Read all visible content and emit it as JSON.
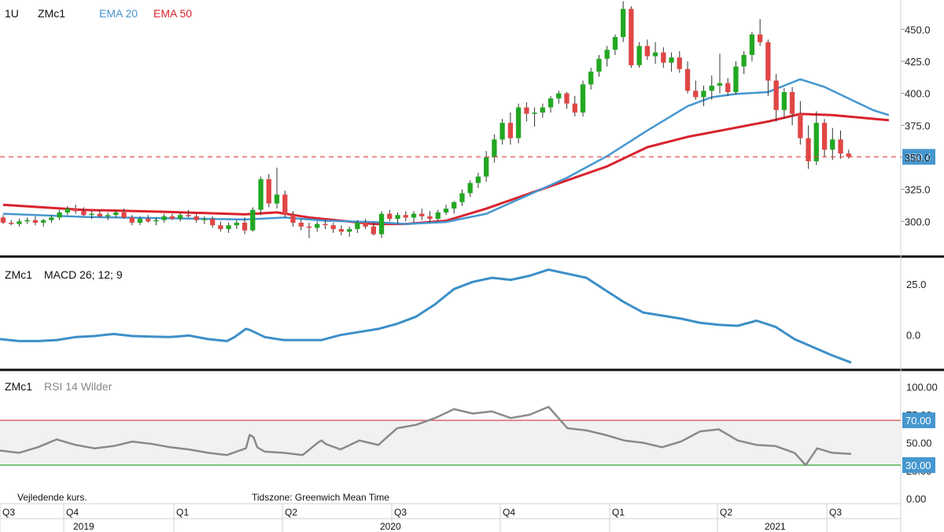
{
  "header": {
    "interval": "1U",
    "symbol": "ZMc1",
    "ema20_label": "EMA 20",
    "ema50_label": "EMA 50"
  },
  "macd_panel": {
    "symbol": "ZMc1",
    "title": "MACD 26; 12; 9"
  },
  "rsi_panel": {
    "symbol": "ZMc1",
    "title": "RSI 14 Wilder"
  },
  "footer": {
    "note": "Vejledende kurs.",
    "timezone": "Tidszone: Greenwich Mean Time"
  },
  "colors": {
    "up": "#22a822",
    "down": "#e04646",
    "ema20": "#4597cf",
    "ema50": "#d9232e",
    "macd": "#3d8fc7",
    "rsi": "#8a8a8a",
    "rsi_upper": "#d94a4a",
    "rsi_lower": "#2fa62f",
    "badge": "#4597cf"
  },
  "chart_data": [
    {
      "type": "candlestick",
      "title": "",
      "ylim": [
        275,
        468
      ],
      "yticks": [
        "300.0",
        "325.0",
        "350.0",
        "375.0",
        "400.0",
        "425.0",
        "450.0"
      ],
      "last_price_label": "350.4",
      "last_price": 350.4,
      "ohlc": [
        [
          303,
          305,
          298,
          299
        ],
        [
          299,
          301,
          297,
          298
        ],
        [
          298,
          302,
          296,
          300
        ],
        [
          300,
          303,
          298,
          301
        ],
        [
          301,
          304,
          297,
          299
        ],
        [
          299,
          302,
          296,
          301
        ],
        [
          301,
          305,
          299,
          303
        ],
        [
          303,
          309,
          301,
          307
        ],
        [
          307,
          312,
          305,
          310
        ],
        [
          310,
          313,
          306,
          308
        ],
        [
          308,
          311,
          304,
          305
        ],
        [
          305,
          308,
          302,
          306
        ],
        [
          306,
          309,
          303,
          304
        ],
        [
          304,
          307,
          301,
          305
        ],
        [
          305,
          309,
          303,
          307
        ],
        [
          307,
          310,
          302,
          303
        ],
        [
          303,
          305,
          297,
          299
        ],
        [
          299,
          304,
          297,
          302
        ],
        [
          302,
          305,
          299,
          300
        ],
        [
          300,
          303,
          297,
          301
        ],
        [
          301,
          306,
          299,
          304
        ],
        [
          304,
          306,
          301,
          302
        ],
        [
          302,
          307,
          300,
          305
        ],
        [
          305,
          309,
          303,
          304
        ],
        [
          304,
          306,
          299,
          301
        ],
        [
          301,
          304,
          298,
          302
        ],
        [
          302,
          304,
          295,
          297
        ],
        [
          297,
          300,
          292,
          294
        ],
        [
          294,
          299,
          291,
          297
        ],
        [
          297,
          301,
          294,
          299
        ],
        [
          299,
          303,
          290,
          293
        ],
        [
          293,
          311,
          292,
          309
        ],
        [
          309,
          335,
          305,
          333
        ],
        [
          333,
          337,
          311,
          314
        ],
        [
          314,
          342,
          310,
          321
        ],
        [
          321,
          324,
          303,
          305
        ],
        [
          305,
          308,
          296,
          299
        ],
        [
          299,
          302,
          293,
          296
        ],
        [
          296,
          299,
          287,
          295
        ],
        [
          295,
          300,
          292,
          298
        ],
        [
          298,
          301,
          294,
          297
        ],
        [
          297,
          299,
          291,
          294
        ],
        [
          294,
          297,
          289,
          292
        ],
        [
          292,
          296,
          288,
          294
        ],
        [
          294,
          301,
          291,
          299
        ],
        [
          299,
          302,
          294,
          296
        ],
        [
          296,
          299,
          289,
          290
        ],
        [
          290,
          308,
          287,
          306
        ],
        [
          306,
          309,
          300,
          302
        ],
        [
          302,
          307,
          298,
          305
        ],
        [
          305,
          308,
          300,
          303
        ],
        [
          303,
          308,
          299,
          306
        ],
        [
          306,
          310,
          301,
          304
        ],
        [
          304,
          308,
          299,
          302
        ],
        [
          302,
          309,
          300,
          307
        ],
        [
          307,
          313,
          305,
          310
        ],
        [
          310,
          316,
          306,
          315
        ],
        [
          315,
          325,
          312,
          322
        ],
        [
          322,
          332,
          319,
          330
        ],
        [
          330,
          338,
          326,
          335
        ],
        [
          335,
          355,
          331,
          350
        ],
        [
          350,
          368,
          346,
          364
        ],
        [
          364,
          380,
          360,
          377
        ],
        [
          377,
          385,
          360,
          365
        ],
        [
          365,
          392,
          361,
          389
        ],
        [
          389,
          393,
          378,
          384
        ],
        [
          384,
          389,
          374,
          385
        ],
        [
          385,
          392,
          381,
          389
        ],
        [
          389,
          398,
          385,
          396
        ],
        [
          396,
          402,
          392,
          400
        ],
        [
          400,
          401,
          388,
          392
        ],
        [
          392,
          398,
          382,
          385
        ],
        [
          385,
          410,
          382,
          407
        ],
        [
          407,
          420,
          403,
          417
        ],
        [
          417,
          430,
          413,
          427
        ],
        [
          427,
          437,
          421,
          434
        ],
        [
          434,
          446,
          430,
          444
        ],
        [
          444,
          472,
          440,
          466
        ],
        [
          466,
          468,
          420,
          422
        ],
        [
          422,
          440,
          420,
          437
        ],
        [
          437,
          442,
          426,
          429
        ],
        [
          429,
          440,
          423,
          432
        ],
        [
          432,
          436,
          420,
          424
        ],
        [
          424,
          432,
          417,
          428
        ],
        [
          428,
          433,
          416,
          419
        ],
        [
          419,
          425,
          400,
          402
        ],
        [
          402,
          410,
          395,
          397
        ],
        [
          397,
          406,
          390,
          402
        ],
        [
          402,
          414,
          395,
          406
        ],
        [
          406,
          431,
          400,
          408
        ],
        [
          408,
          412,
          398,
          401
        ],
        [
          401,
          425,
          399,
          421
        ],
        [
          421,
          433,
          415,
          430
        ],
        [
          430,
          448,
          425,
          446
        ],
        [
          446,
          458,
          437,
          440
        ],
        [
          440,
          442,
          398,
          410
        ],
        [
          410,
          415,
          378,
          387
        ],
        [
          387,
          404,
          380,
          401
        ],
        [
          401,
          405,
          375,
          384
        ],
        [
          384,
          394,
          360,
          365
        ],
        [
          365,
          375,
          341,
          347
        ],
        [
          347,
          386,
          344,
          377
        ],
        [
          377,
          380,
          350,
          356
        ],
        [
          356,
          373,
          348,
          364
        ],
        [
          364,
          371,
          349,
          353
        ],
        [
          353,
          356,
          349,
          350.4
        ]
      ],
      "ema20": [
        [
          0,
          306
        ],
        [
          10,
          303.5
        ],
        [
          20,
          302.5
        ],
        [
          30,
          301.5
        ],
        [
          35,
          303
        ],
        [
          40,
          300.5
        ],
        [
          46,
          299.5
        ],
        [
          50,
          298
        ],
        [
          55,
          299.5
        ],
        [
          60,
          306
        ],
        [
          65,
          320
        ],
        [
          70,
          334
        ],
        [
          75,
          351
        ],
        [
          80,
          371
        ],
        [
          85,
          390
        ],
        [
          88,
          397
        ],
        [
          91,
          399.5
        ],
        [
          95,
          401
        ],
        [
          99,
          411
        ],
        [
          102,
          405
        ],
        [
          106,
          393
        ],
        [
          108,
          387
        ],
        [
          110,
          383
        ]
      ],
      "ema50": [
        [
          0,
          313
        ],
        [
          10,
          309
        ],
        [
          20,
          307.5
        ],
        [
          30,
          305.5
        ],
        [
          34,
          307
        ],
        [
          38,
          303
        ],
        [
          46,
          298
        ],
        [
          50,
          298
        ],
        [
          55,
          300.5
        ],
        [
          60,
          310
        ],
        [
          65,
          321
        ],
        [
          70,
          332
        ],
        [
          75,
          343
        ],
        [
          80,
          358
        ],
        [
          85,
          366
        ],
        [
          90,
          372
        ],
        [
          95,
          378
        ],
        [
          99,
          384
        ],
        [
          103,
          383
        ],
        [
          110,
          379
        ]
      ],
      "x_periods": [
        {
          "label": "Q3",
          "bar": 0
        },
        {
          "label": "Q4",
          "bar": 6
        },
        {
          "label": "Q1",
          "bar": 16
        },
        {
          "label": "Q2",
          "bar": 26
        },
        {
          "label": "Q3",
          "bar": 36
        },
        {
          "label": "Q4",
          "bar": 46
        },
        {
          "label": "Q1",
          "bar": 56
        },
        {
          "label": "Q2",
          "bar": 66
        },
        {
          "label": "Q3",
          "bar": 76
        }
      ],
      "x_years": [
        "2019",
        "2020",
        "2021"
      ]
    },
    {
      "type": "line",
      "title": "MACD 26; 12; 9",
      "ylim": [
        -14,
        33
      ],
      "yticks": [
        "0.0",
        "25.0"
      ],
      "series": [
        {
          "values": [
            [
              0,
              -2
            ],
            [
              5,
              -3
            ],
            [
              10,
              -3
            ],
            [
              15,
              -2.5
            ],
            [
              20,
              -1
            ],
            [
              25,
              -0.5
            ],
            [
              30,
              0.5
            ],
            [
              35,
              -0.5
            ],
            [
              40,
              -0.8
            ],
            [
              45,
              -1
            ],
            [
              50,
              -0.3
            ],
            [
              55,
              -2
            ],
            [
              60,
              -3
            ],
            [
              62,
              -1
            ],
            [
              65,
              3
            ],
            [
              66,
              2.5
            ],
            [
              70,
              -1
            ],
            [
              75,
              -2.5
            ],
            [
              80,
              -2.5
            ],
            [
              85,
              -2.5
            ],
            [
              90,
              0
            ],
            [
              95,
              1.5
            ],
            [
              100,
              3
            ],
            [
              105,
              5.5
            ],
            [
              110,
              9
            ],
            [
              115,
              15
            ],
            [
              120,
              22.5
            ],
            [
              125,
              26
            ],
            [
              130,
              28
            ],
            [
              135,
              27
            ],
            [
              140,
              29
            ],
            [
              145,
              32
            ],
            [
              150,
              30
            ],
            [
              155,
              28
            ],
            [
              160,
              22
            ],
            [
              165,
              16
            ],
            [
              170,
              11
            ],
            [
              175,
              9.5
            ],
            [
              180,
              8
            ],
            [
              185,
              6
            ],
            [
              190,
              5
            ],
            [
              195,
              4.5
            ],
            [
              200,
              7
            ],
            [
              205,
              4
            ],
            [
              210,
              -2
            ],
            [
              215,
              -6
            ],
            [
              220,
              -10
            ],
            [
              225,
              -13.5
            ]
          ]
        }
      ]
    },
    {
      "type": "line",
      "title": "RSI 14 Wilder",
      "ylim": [
        -3,
        108
      ],
      "yticks": [
        "0.00",
        "25.00",
        "50.00",
        "75.00",
        "100.00"
      ],
      "levels": {
        "upper": 70,
        "lower": 30,
        "upper_label": "70.00",
        "lower_label": "30.00"
      },
      "series": [
        {
          "values": [
            [
              0,
              43
            ],
            [
              5,
              41
            ],
            [
              10,
              46
            ],
            [
              15,
              53
            ],
            [
              20,
              48
            ],
            [
              25,
              45
            ],
            [
              30,
              47
            ],
            [
              35,
              51
            ],
            [
              40,
              49
            ],
            [
              45,
              46
            ],
            [
              50,
              44
            ],
            [
              55,
              41
            ],
            [
              60,
              39
            ],
            [
              65,
              45
            ],
            [
              66,
              57
            ],
            [
              67,
              55
            ],
            [
              68,
              46
            ],
            [
              70,
              42
            ],
            [
              75,
              41
            ],
            [
              80,
              39
            ],
            [
              84,
              50
            ],
            [
              85,
              52
            ],
            [
              86,
              49
            ],
            [
              90,
              44
            ],
            [
              95,
              52
            ],
            [
              100,
              48
            ],
            [
              105,
              63
            ],
            [
              110,
              66
            ],
            [
              115,
              72
            ],
            [
              120,
              80
            ],
            [
              125,
              76
            ],
            [
              130,
              78
            ],
            [
              135,
              72
            ],
            [
              140,
              75
            ],
            [
              145,
              82
            ],
            [
              150,
              63
            ],
            [
              155,
              61
            ],
            [
              160,
              57
            ],
            [
              165,
              52
            ],
            [
              170,
              50
            ],
            [
              175,
              46
            ],
            [
              180,
              51
            ],
            [
              185,
              60
            ],
            [
              190,
              62
            ],
            [
              195,
              52
            ],
            [
              200,
              48
            ],
            [
              205,
              47
            ],
            [
              210,
              41
            ],
            [
              213,
              30
            ],
            [
              216,
              45
            ],
            [
              220,
              41
            ],
            [
              225,
              40
            ]
          ]
        }
      ]
    }
  ]
}
